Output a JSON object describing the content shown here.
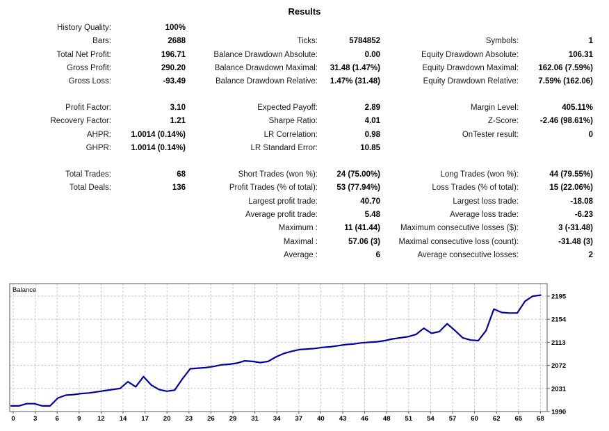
{
  "title": "Results",
  "stats": {
    "groups": [
      {
        "rows": [
          [
            [
              "History Quality:",
              "100%"
            ],
            null,
            null
          ],
          [
            [
              "Bars:",
              "2688"
            ],
            [
              "Ticks:",
              "5784852"
            ],
            [
              "Symbols:",
              "1"
            ]
          ],
          [
            [
              "Total Net Profit:",
              "196.71"
            ],
            [
              "Balance Drawdown Absolute:",
              "0.00"
            ],
            [
              "Equity Drawdown Absolute:",
              "106.31"
            ]
          ],
          [
            [
              "Gross Profit:",
              "290.20"
            ],
            [
              "Balance Drawdown Maximal:",
              "31.48 (1.47%)"
            ],
            [
              "Equity Drawdown Maximal:",
              "162.06 (7.59%)"
            ]
          ],
          [
            [
              "Gross Loss:",
              "-93.49"
            ],
            [
              "Balance Drawdown Relative:",
              "1.47% (31.48)"
            ],
            [
              "Equity Drawdown Relative:",
              "7.59% (162.06)"
            ]
          ]
        ]
      },
      {
        "rows": [
          [
            [
              "Profit Factor:",
              "3.10"
            ],
            [
              "Expected Payoff:",
              "2.89"
            ],
            [
              "Margin Level:",
              "405.11%"
            ]
          ],
          [
            [
              "Recovery Factor:",
              "1.21"
            ],
            [
              "Sharpe Ratio:",
              "4.01"
            ],
            [
              "Z-Score:",
              "-2.46 (98.61%)"
            ]
          ],
          [
            [
              "AHPR:",
              "1.0014 (0.14%)"
            ],
            [
              "LR Correlation:",
              "0.98"
            ],
            [
              "OnTester result:",
              "0"
            ]
          ],
          [
            [
              "GHPR:",
              "1.0014 (0.14%)"
            ],
            [
              "LR Standard Error:",
              "10.85"
            ],
            null
          ]
        ]
      },
      {
        "rows": [
          [
            [
              "Total Trades:",
              "68"
            ],
            [
              "Short Trades (won %):",
              "24 (75.00%)"
            ],
            [
              "Long Trades (won %):",
              "44 (79.55%)"
            ]
          ],
          [
            [
              "Total Deals:",
              "136"
            ],
            [
              "Profit Trades (% of total):",
              "53 (77.94%)"
            ],
            [
              "Loss Trades (% of total):",
              "15 (22.06%)"
            ]
          ],
          [
            null,
            [
              "Largest profit trade:",
              "40.70"
            ],
            [
              "Largest loss trade:",
              "-18.08"
            ]
          ],
          [
            null,
            [
              "Average profit trade:",
              "5.48"
            ],
            [
              "Average loss trade:",
              "-6.23"
            ]
          ],
          [
            null,
            [
              "Maximum :",
              "11 (41.44)"
            ],
            [
              "Maximum consecutive losses ($):",
              "3 (-31.48)"
            ]
          ],
          [
            null,
            [
              "Maximal :",
              "57.06 (3)"
            ],
            [
              "Maximal consecutive loss (count):",
              "-31.48 (3)"
            ]
          ],
          [
            null,
            [
              "Average :",
              "6"
            ],
            [
              "Average consecutive losses:",
              "2"
            ]
          ]
        ]
      }
    ]
  },
  "chart_data": {
    "type": "line",
    "title": "Balance",
    "xlabel": "",
    "ylabel": "",
    "xlim": [
      0,
      68
    ],
    "ylim": [
      1990,
      2243
    ],
    "grid": true,
    "legend_position": "top-left-inside",
    "line_color": "#0000a0",
    "grid_color": "#c8c8c8",
    "border_color": "#5a5a5a",
    "x_ticks": [
      "0",
      "3",
      "6",
      "9",
      "12",
      "14",
      "17",
      "20",
      "23",
      "26",
      "29",
      "31",
      "34",
      "37",
      "40",
      "43",
      "46",
      "48",
      "51",
      "54",
      "57",
      "60",
      "62",
      "65",
      "68"
    ],
    "y_ticks": [
      2195,
      2154,
      2113,
      2072,
      2031,
      1990
    ],
    "series": [
      {
        "name": "Balance",
        "x_is_trade_index": true,
        "values": [
          2000,
          2000,
          2004,
          2004,
          2000,
          2000,
          2014,
          2019,
          2020,
          2022,
          2023,
          2025,
          2027,
          2029,
          2031,
          2043,
          2034,
          2052,
          2037,
          2029,
          2026,
          2028,
          2048,
          2066,
          2067,
          2068,
          2070,
          2073,
          2074,
          2076,
          2080,
          2079,
          2077,
          2079,
          2087,
          2093,
          2097,
          2100,
          2101,
          2102,
          2104,
          2105,
          2107,
          2109,
          2110,
          2112,
          2113,
          2114,
          2116,
          2119,
          2121,
          2123,
          2127,
          2138,
          2129,
          2132,
          2146,
          2134,
          2121,
          2117,
          2116,
          2134,
          2172,
          2166,
          2165,
          2165,
          2186,
          2195,
          2196.7
        ]
      }
    ]
  }
}
